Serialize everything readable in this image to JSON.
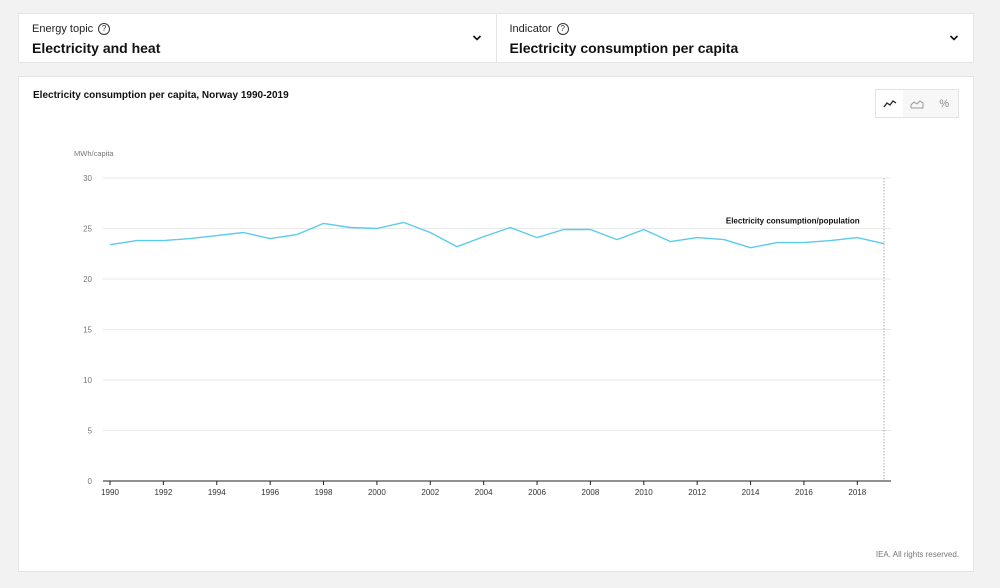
{
  "selectors": [
    {
      "label": "Energy topic",
      "value": "Electricity and heat"
    },
    {
      "label": "Indicator",
      "value": "Electricity consumption per capita"
    }
  ],
  "toggles": [
    {
      "name": "line-icon",
      "active": true
    },
    {
      "name": "area-icon",
      "active": false
    },
    {
      "name": "percent-icon",
      "label": "%",
      "active": false
    }
  ],
  "footer": "IEA. All rights reserved.",
  "colors": {
    "series": "#5bcbeb",
    "grid": "#e9e9e9",
    "axis": "#222222"
  },
  "chart_data": {
    "type": "line",
    "title": "Electricity consumption per capita, Norway 1990-2019",
    "ylabel": "MWh/capita",
    "xlabel": "",
    "ylim": [
      0,
      30
    ],
    "yticks": [
      0,
      5,
      10,
      15,
      20,
      25,
      30
    ],
    "xticks": [
      1990,
      1992,
      1994,
      1996,
      1998,
      2000,
      2002,
      2004,
      2006,
      2008,
      2010,
      2012,
      2014,
      2016,
      2018
    ],
    "xlim": [
      1990,
      2019
    ],
    "grid": true,
    "series": [
      {
        "name": "Electricity consumption/population",
        "x": [
          1990,
          1991,
          1992,
          1993,
          1994,
          1995,
          1996,
          1997,
          1998,
          1999,
          2000,
          2001,
          2002,
          2003,
          2004,
          2005,
          2006,
          2007,
          2008,
          2009,
          2010,
          2011,
          2012,
          2013,
          2014,
          2015,
          2016,
          2017,
          2018,
          2019
        ],
        "values": [
          23.4,
          23.8,
          23.8,
          24.0,
          24.3,
          24.6,
          24.0,
          24.4,
          25.5,
          25.1,
          25.0,
          25.6,
          24.6,
          23.2,
          24.2,
          25.1,
          24.1,
          24.9,
          24.9,
          23.9,
          24.9,
          23.7,
          24.1,
          23.9,
          23.1,
          23.6,
          23.6,
          23.8,
          24.1,
          23.5
        ]
      }
    ]
  }
}
